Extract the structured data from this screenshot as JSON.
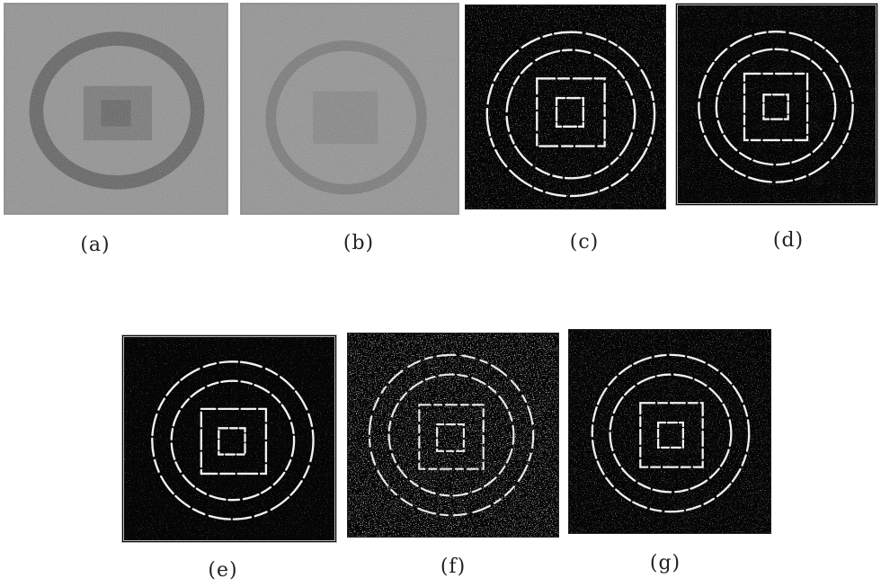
{
  "figure": {
    "panels": [
      {
        "id": "a",
        "label": "(a)",
        "style": "gray-noisy"
      },
      {
        "id": "b",
        "label": "(b)",
        "style": "gray-noisy"
      },
      {
        "id": "c",
        "label": "(c)",
        "style": "edge-map"
      },
      {
        "id": "d",
        "label": "(d)",
        "style": "edge-map"
      },
      {
        "id": "e",
        "label": "(e)",
        "style": "edge-map"
      },
      {
        "id": "f",
        "label": "(f)",
        "style": "edge-map"
      },
      {
        "id": "g",
        "label": "(g)",
        "style": "edge-map"
      }
    ]
  }
}
